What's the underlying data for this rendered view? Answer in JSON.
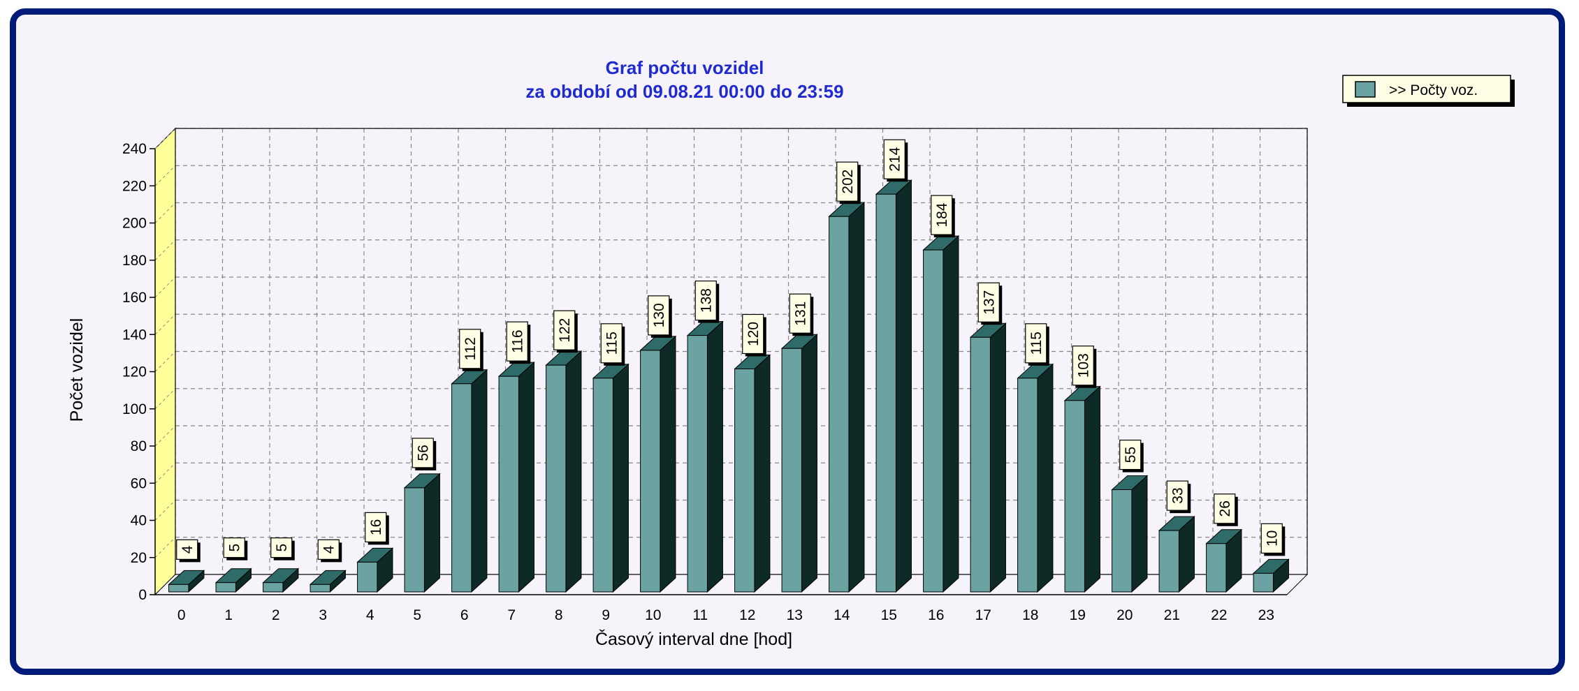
{
  "chart_data": {
    "type": "bar",
    "title": "Graf počtu vozidel",
    "subtitle": "za období od 09.08.21 00:00 do 23:59",
    "xlabel": "Časový interval dne [hod]",
    "ylabel": "Počet vozidel",
    "ylim": [
      0,
      240
    ],
    "yticks": [
      "0",
      "20",
      "40",
      "60",
      "80",
      "100",
      "120",
      "140",
      "160",
      "180",
      "200",
      "220",
      "240"
    ],
    "grid": true,
    "legend_position": "top-right",
    "categories": [
      "0",
      "1",
      "2",
      "3",
      "4",
      "5",
      "6",
      "7",
      "8",
      "9",
      "10",
      "11",
      "12",
      "13",
      "14",
      "15",
      "16",
      "17",
      "18",
      "19",
      "20",
      "21",
      "22",
      "23"
    ],
    "series": [
      {
        "name": ">> Počty voz.",
        "values": [
          4,
          5,
          5,
          4,
          16,
          56,
          112,
          116,
          122,
          115,
          130,
          138,
          120,
          131,
          202,
          214,
          184,
          137,
          115,
          103,
          55,
          33,
          26,
          10
        ]
      }
    ],
    "colors": {
      "bar_front": "#6aa3a1",
      "bar_top": "#2f6b68",
      "bar_side": "#0e2a27",
      "wall": "#ffff99",
      "title": "#1f2ad0",
      "frame": "#001a7a"
    }
  }
}
